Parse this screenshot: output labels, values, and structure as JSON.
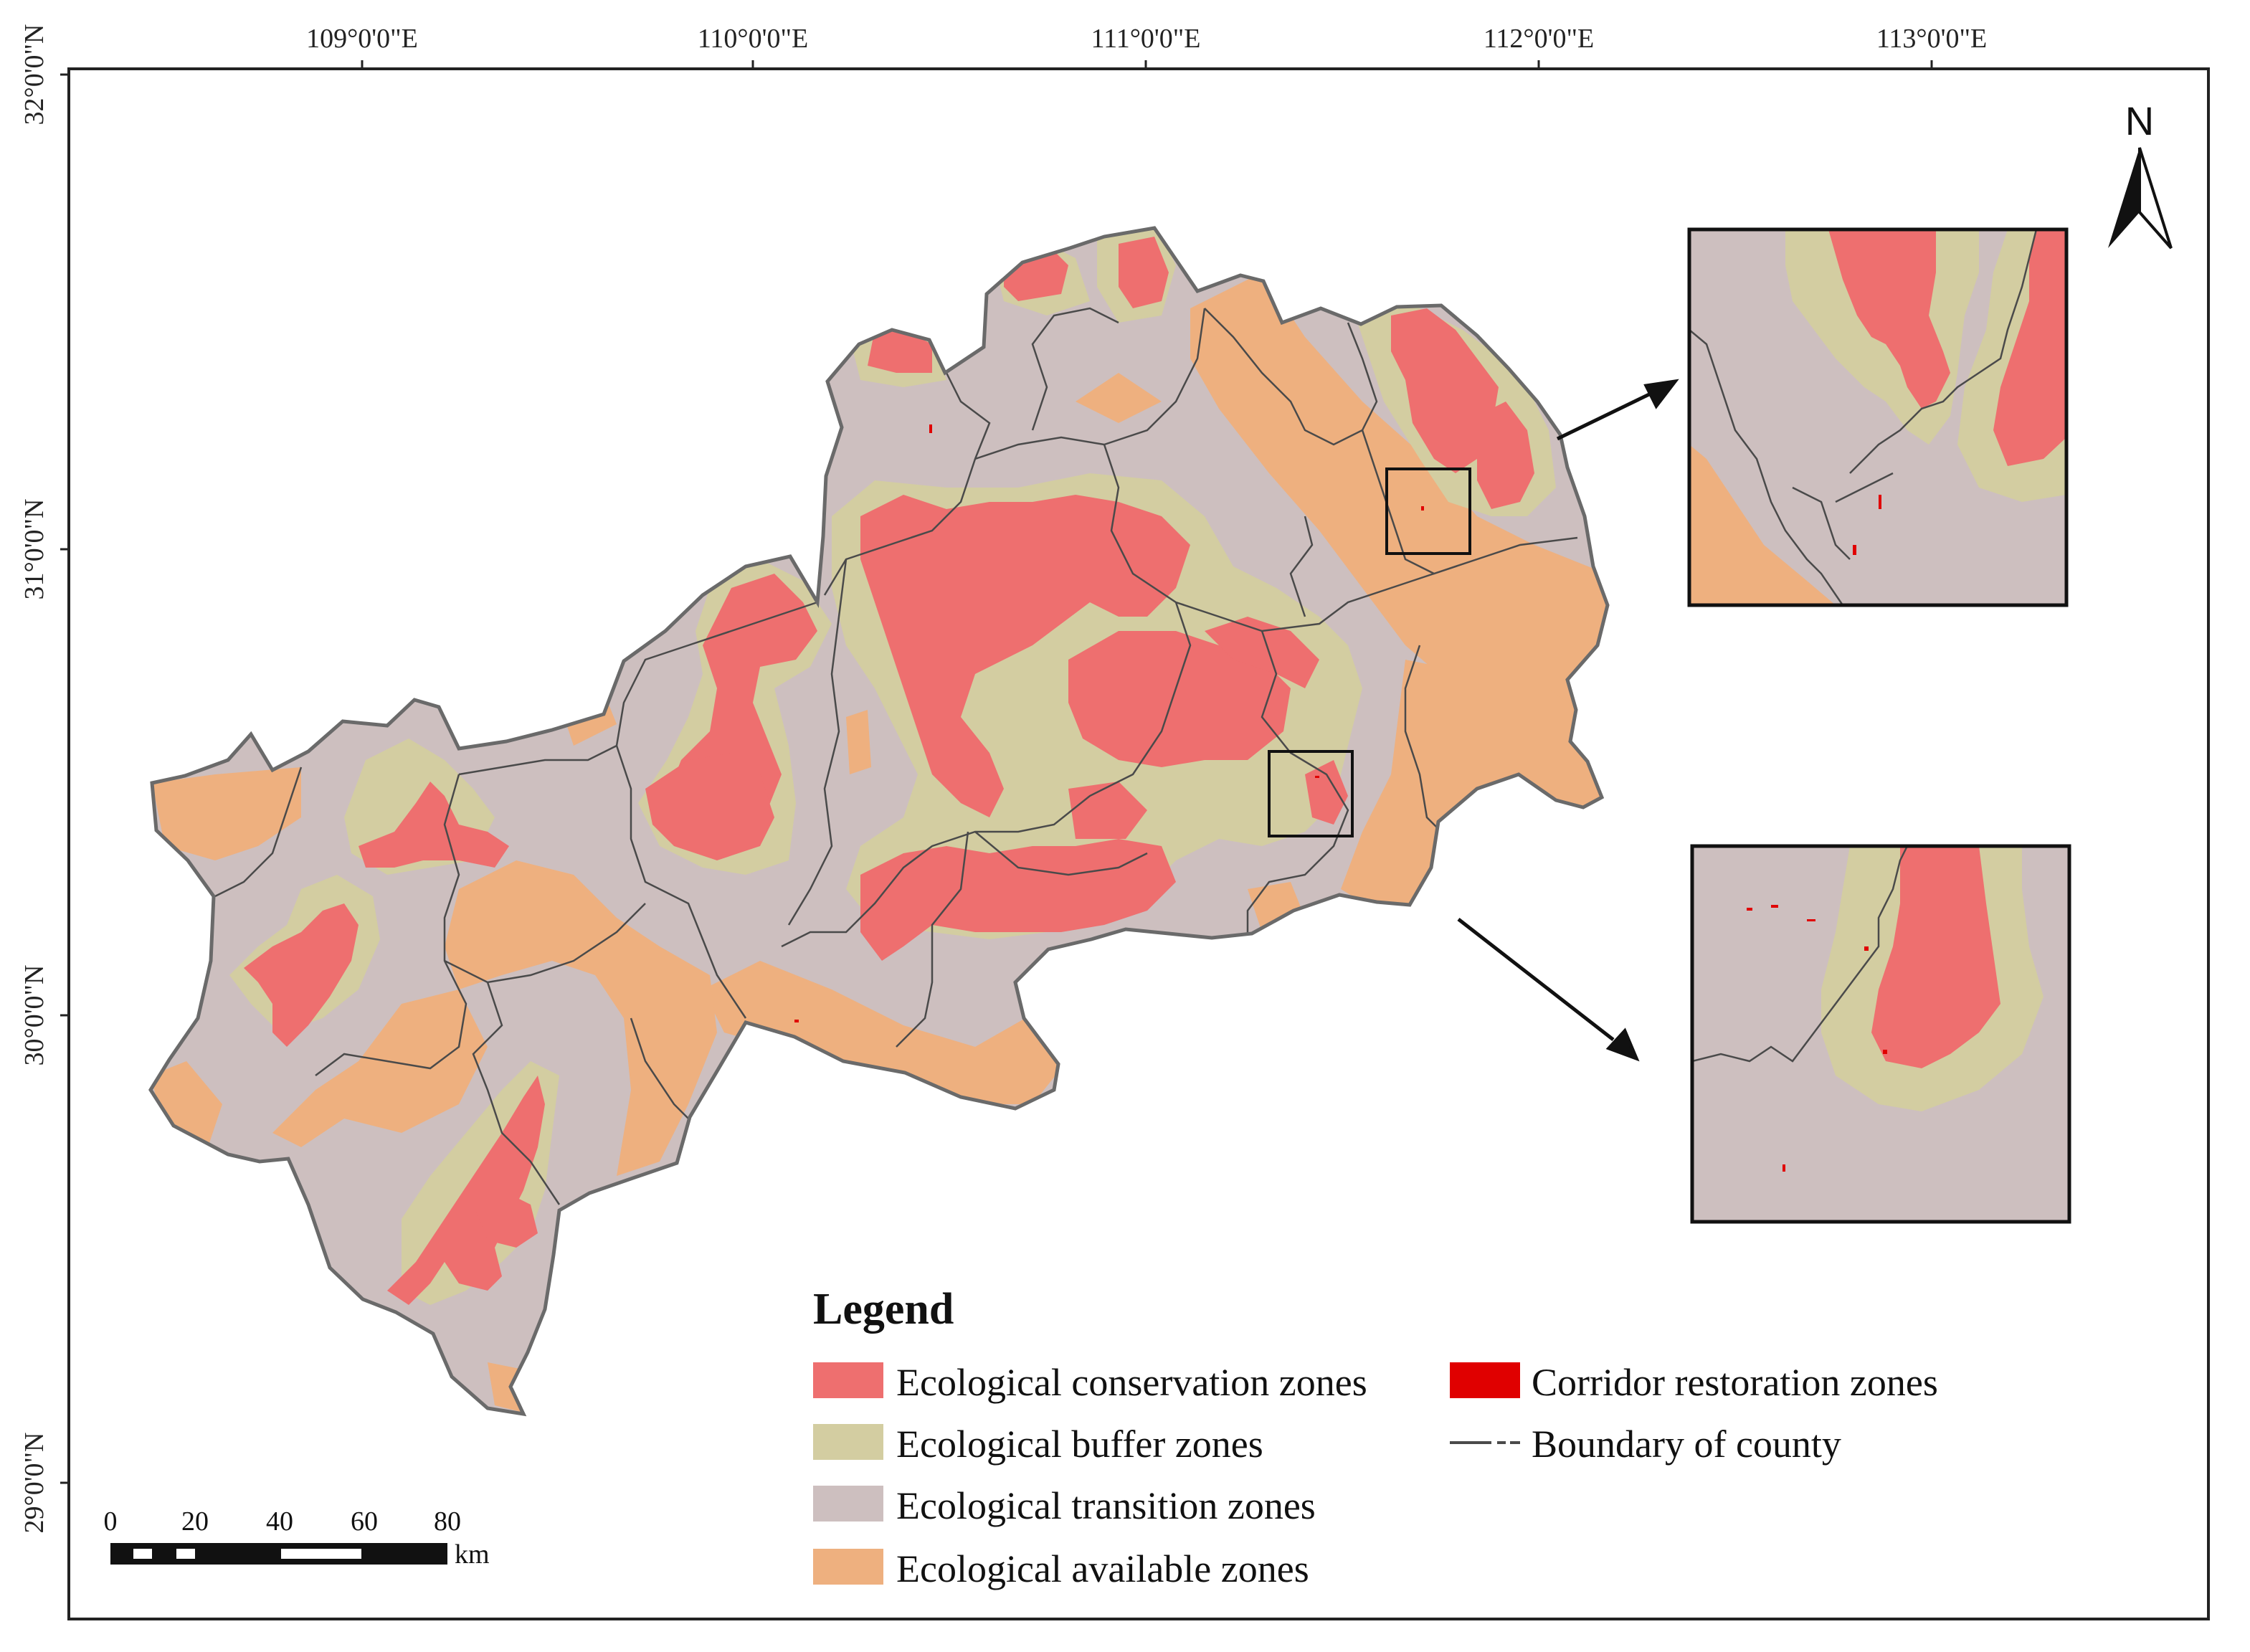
{
  "colors": {
    "conservation": "#ee6f6f",
    "buffer": "#d3cda1",
    "transition": "#cdbfbf",
    "available": "#eeb07f",
    "corridor": "#e00000",
    "boundary": "#4a4a4a"
  },
  "axes": {
    "top_labels": [
      "109°0'0\"E",
      "110°0'0\"E",
      "111°0'0\"E",
      "112°0'0\"E",
      "113°0'0\"E"
    ],
    "left_labels": [
      "32°0'0\"N",
      "31°0'0\"N",
      "30°0'0\"N",
      "29°0'0\"N"
    ]
  },
  "north_arrow": {
    "label": "N",
    "icon": "north-arrow-icon"
  },
  "legend": {
    "title": "Legend",
    "items": [
      {
        "label": "Ecological conservation zones",
        "swatch": "conservation"
      },
      {
        "label": "Ecological buffer zones",
        "swatch": "buffer"
      },
      {
        "label": "Ecological transition zones",
        "swatch": "transition"
      },
      {
        "label": "Ecological available zones",
        "swatch": "available"
      },
      {
        "label": "Corridor restoration zones",
        "swatch": "corridor"
      },
      {
        "label": "Boundary of county",
        "swatch": "boundary"
      }
    ]
  },
  "scale_bar": {
    "ticks": [
      "0",
      "20",
      "40",
      "60",
      "80"
    ],
    "unit": "km"
  }
}
